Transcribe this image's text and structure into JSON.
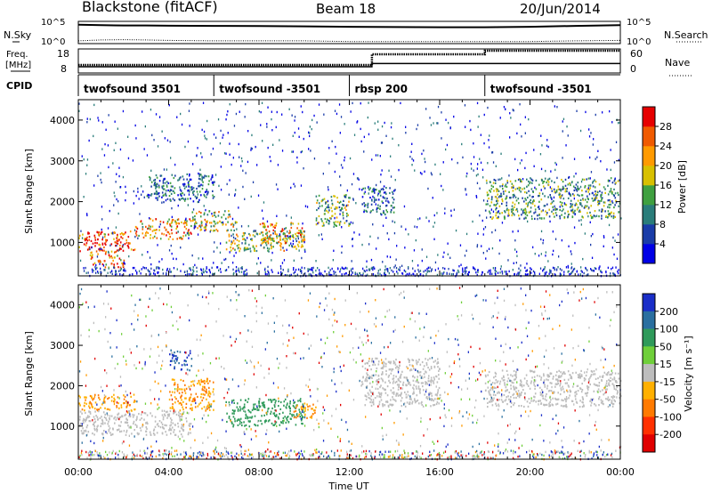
{
  "header": {
    "station": "Blackstone (fitACF)",
    "beam": "Beam 18",
    "date": "20/Jun/2014"
  },
  "strip_nsky": {
    "left_label": "N.Sky",
    "right_label": "N.Search",
    "left_ticks": [
      "10^5",
      "10^0"
    ],
    "right_ticks": [
      "10^5",
      "10^0"
    ]
  },
  "strip_freq": {
    "left_label_1": "Freq.",
    "left_label_2": "[MHz]",
    "right_label": "Nave",
    "left_ticks": [
      "18",
      "8"
    ],
    "right_ticks": [
      "60",
      "0"
    ]
  },
  "strip_cpid": {
    "label": "CPID",
    "segments": [
      {
        "name": "twofsound 3501",
        "start_hour": 0
      },
      {
        "name": "twofsound -3501",
        "start_hour": 6
      },
      {
        "name": "rbsp 200",
        "start_hour": 12
      },
      {
        "name": "twofsound -3501",
        "start_hour": 18
      }
    ]
  },
  "time_axis": {
    "label": "Time UT",
    "ticks": [
      "00:00",
      "04:00",
      "08:00",
      "12:00",
      "16:00",
      "20:00",
      "00:00"
    ]
  },
  "range_axis": {
    "label": "Slant Range [km]",
    "ticks": [
      "1000",
      "2000",
      "3000",
      "4000"
    ]
  },
  "power_bar": {
    "label": "Power [dB]",
    "ticks": [
      "4",
      "8",
      "12",
      "16",
      "20",
      "24",
      "28"
    ],
    "colors": [
      "#0000e6",
      "#1a3ca8",
      "#2a7d7a",
      "#3fa040",
      "#d8c000",
      "#ff9a00",
      "#f05a00",
      "#e60000"
    ]
  },
  "velocity_bar": {
    "label": "Velocity [m s⁻¹]",
    "ticks": [
      "200",
      "100",
      "50",
      "15",
      "-15",
      "-50",
      "-100",
      "-200"
    ],
    "colors": [
      "#1a2ec8",
      "#2a6fa0",
      "#2f9a5a",
      "#6fcf3a",
      "#bdbdbd",
      "#ffb000",
      "#ff7a00",
      "#ff3000",
      "#e00000"
    ]
  },
  "chart_data": [
    {
      "type": "line",
      "name": "N.Sky / N.Search",
      "x": [
        0,
        1,
        2,
        3,
        4,
        6,
        8,
        10,
        12,
        14,
        16,
        18,
        20,
        22,
        24
      ],
      "series": [
        {
          "values": [
            40000,
            30000,
            25000,
            25000,
            22000,
            20000,
            18000,
            15000,
            12000,
            10000,
            9000,
            9000,
            12000,
            20000,
            30000
          ]
        },
        {
          "values": [
            3,
            5,
            6,
            5,
            4,
            3,
            3,
            3,
            2,
            2,
            2,
            2,
            2,
            3,
            4
          ]
        }
      ]
    },
    {
      "type": "line",
      "name": "Freq / Nave",
      "x": [
        0,
        13,
        13,
        18,
        18,
        24
      ],
      "series": [
        {
          "values": [
            10.5,
            10.5,
            12,
            12,
            12,
            12
          ]
        },
        {
          "values": [
            20,
            20,
            50,
            50,
            60,
            60
          ]
        }
      ]
    },
    {
      "type": "heatmap",
      "name": "Power",
      "xlim": [
        0,
        24
      ],
      "ylim": [
        180,
        4500
      ],
      "bands": [
        {
          "x": [
            0,
            2.5
          ],
          "y": [
            800,
            1300
          ],
          "value": 28
        },
        {
          "x": [
            0.5,
            2
          ],
          "y": [
            400,
            800
          ],
          "value": 24
        },
        {
          "x": [
            2.5,
            5
          ],
          "y": [
            1100,
            1600
          ],
          "value": 22
        },
        {
          "x": [
            5,
            7
          ],
          "y": [
            1300,
            1800
          ],
          "value": 18
        },
        {
          "x": [
            6.5,
            10
          ],
          "y": [
            800,
            1300
          ],
          "value": 16
        },
        {
          "x": [
            8,
            10
          ],
          "y": [
            1000,
            1500
          ],
          "value": 22
        },
        {
          "x": [
            10.5,
            12
          ],
          "y": [
            1400,
            2200
          ],
          "value": 14
        },
        {
          "x": [
            12.5,
            14
          ],
          "y": [
            1700,
            2400
          ],
          "value": 8
        },
        {
          "x": [
            18,
            24
          ],
          "y": [
            1600,
            2600
          ],
          "value": 12
        },
        {
          "x": [
            3,
            6
          ],
          "y": [
            2000,
            2700
          ],
          "value": 8
        }
      ]
    },
    {
      "type": "heatmap",
      "name": "Velocity",
      "xlim": [
        0,
        24
      ],
      "ylim": [
        180,
        4500
      ],
      "bands": [
        {
          "x": [
            0,
            2.5
          ],
          "y": [
            1400,
            1800
          ],
          "value": -50
        },
        {
          "x": [
            0,
            5
          ],
          "y": [
            800,
            1400
          ],
          "value": 0
        },
        {
          "x": [
            4,
            6
          ],
          "y": [
            1400,
            2200
          ],
          "value": -50
        },
        {
          "x": [
            6.5,
            10
          ],
          "y": [
            1000,
            1700
          ],
          "value": 50
        },
        {
          "x": [
            9.5,
            10.5
          ],
          "y": [
            1200,
            1600
          ],
          "value": -50
        },
        {
          "x": [
            4,
            5
          ],
          "y": [
            2400,
            2900
          ],
          "value": 150
        },
        {
          "x": [
            12.5,
            16
          ],
          "y": [
            1500,
            2700
          ],
          "value": 0
        },
        {
          "x": [
            18,
            24
          ],
          "y": [
            1500,
            2400
          ],
          "value": 0
        }
      ]
    }
  ]
}
